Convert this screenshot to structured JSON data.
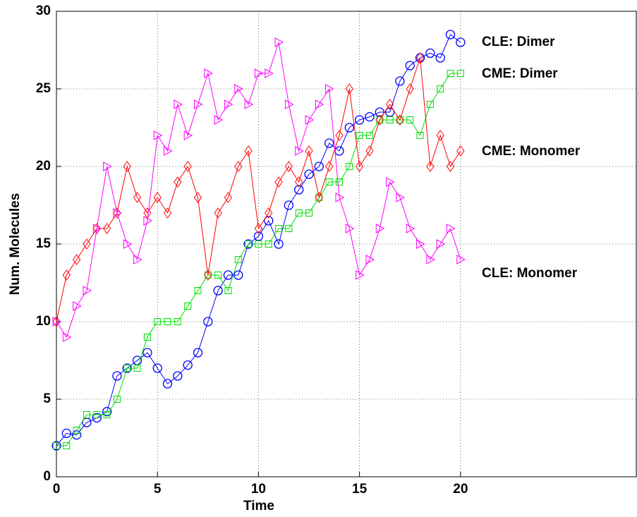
{
  "chart_data": {
    "type": "line",
    "xlabel": "Time",
    "ylabel": "Num. Molecules",
    "x": [
      0,
      0.5,
      1,
      1.5,
      2,
      2.5,
      3,
      3.5,
      4,
      4.5,
      5,
      5.5,
      6,
      6.5,
      7,
      7.5,
      8,
      8.5,
      9,
      9.5,
      10,
      10.5,
      11,
      11.5,
      12,
      12.5,
      13,
      13.5,
      14,
      14.5,
      15,
      15.5,
      16,
      16.5,
      17,
      17.5,
      18,
      18.5,
      19,
      19.5,
      20
    ],
    "series": [
      {
        "name": "CLE: Dimer",
        "color": "#0000ff",
        "marker": "circle",
        "values": [
          2,
          2.8,
          2.7,
          3.5,
          3.8,
          4.2,
          6.5,
          7,
          7.5,
          8,
          7,
          6,
          6.5,
          7.2,
          8,
          10,
          12,
          13,
          13,
          15,
          15.5,
          16.5,
          15,
          17.5,
          18.5,
          19.5,
          20,
          21.5,
          21,
          22.5,
          23,
          23.2,
          23.5,
          23.5,
          25.5,
          26.5,
          27,
          27.3,
          27,
          28.5,
          28
        ]
      },
      {
        "name": "CME: Dimer",
        "color": "#00dd00",
        "marker": "square",
        "values": [
          2,
          2,
          3,
          4,
          4,
          4,
          5,
          7,
          7,
          9,
          10,
          10,
          10,
          11,
          12,
          13,
          13,
          12,
          14,
          15,
          15,
          15,
          16,
          16,
          17,
          17,
          18,
          19,
          19,
          20,
          22,
          22,
          23,
          23,
          23,
          23,
          22,
          24,
          25,
          26,
          26
        ]
      },
      {
        "name": "CME: Monomer",
        "color": "#ff0000",
        "marker": "diamond",
        "values": [
          10,
          13,
          14,
          15,
          16,
          16,
          17,
          20,
          18,
          17,
          18,
          17,
          19,
          20,
          18,
          13,
          17,
          18,
          20,
          21,
          16,
          17,
          19,
          20,
          19,
          21,
          18,
          20,
          22,
          25,
          20,
          21,
          23,
          24,
          23,
          25,
          27,
          20,
          22,
          20,
          21
        ]
      },
      {
        "name": "CLE: Monomer",
        "color": "#ff00ff",
        "marker": "triangle",
        "values": [
          10,
          9,
          11,
          12,
          16,
          20,
          17,
          15,
          14,
          16.5,
          22,
          21,
          24,
          22,
          24,
          26,
          23,
          24,
          25,
          24,
          26,
          26,
          28,
          24,
          21,
          23,
          24,
          25,
          18,
          16,
          13,
          14,
          16,
          19,
          18,
          16,
          15,
          14,
          15,
          16,
          14
        ]
      }
    ],
    "xlim": [
      0,
      28.7
    ],
    "ylim": [
      0,
      30
    ],
    "xticks": [
      0,
      5,
      10,
      15,
      20
    ],
    "yticks": [
      0,
      5,
      10,
      15,
      20,
      25,
      30
    ],
    "grid": true
  }
}
